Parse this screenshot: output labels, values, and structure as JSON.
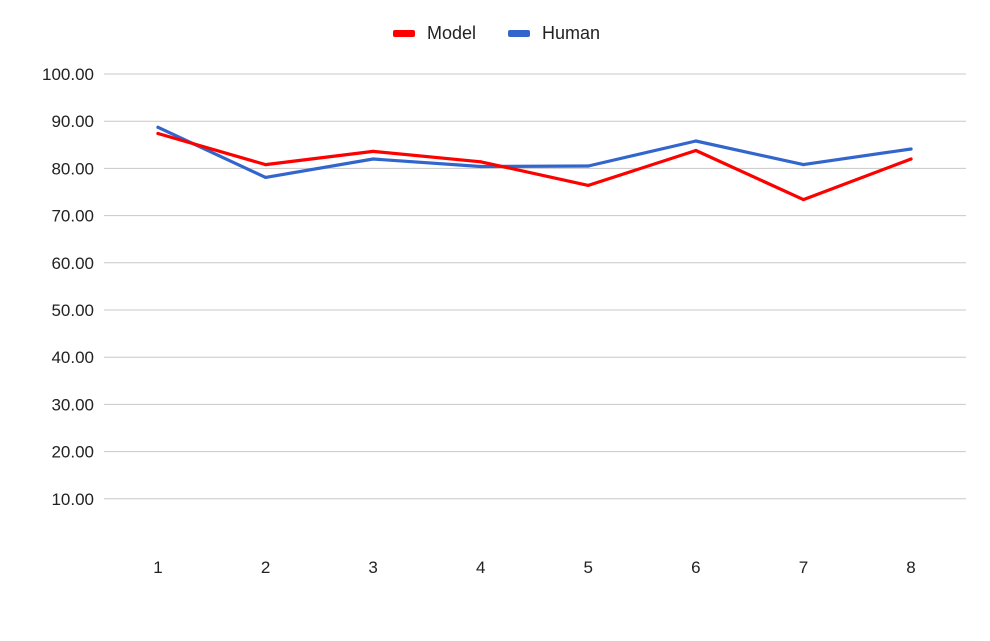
{
  "chart_data": {
    "type": "line",
    "categories": [
      "1",
      "2",
      "3",
      "4",
      "5",
      "6",
      "7",
      "8"
    ],
    "series": [
      {
        "name": "Model",
        "color": "#ff0000",
        "values": [
          87.4,
          80.8,
          83.6,
          81.4,
          76.4,
          83.8,
          73.4,
          82.0
        ]
      },
      {
        "name": "Human",
        "color": "#3366cc",
        "values": [
          88.7,
          78.1,
          82.0,
          80.4,
          80.5,
          85.8,
          80.8,
          84.1
        ]
      }
    ],
    "y_ticks": [
      "10.00",
      "20.00",
      "30.00",
      "40.00",
      "50.00",
      "60.00",
      "70.00",
      "80.00",
      "90.00",
      "100.00"
    ],
    "ylim": [
      0,
      100
    ],
    "grid": true,
    "legend_position": "top-center",
    "title": "",
    "xlabel": "",
    "ylabel": ""
  }
}
